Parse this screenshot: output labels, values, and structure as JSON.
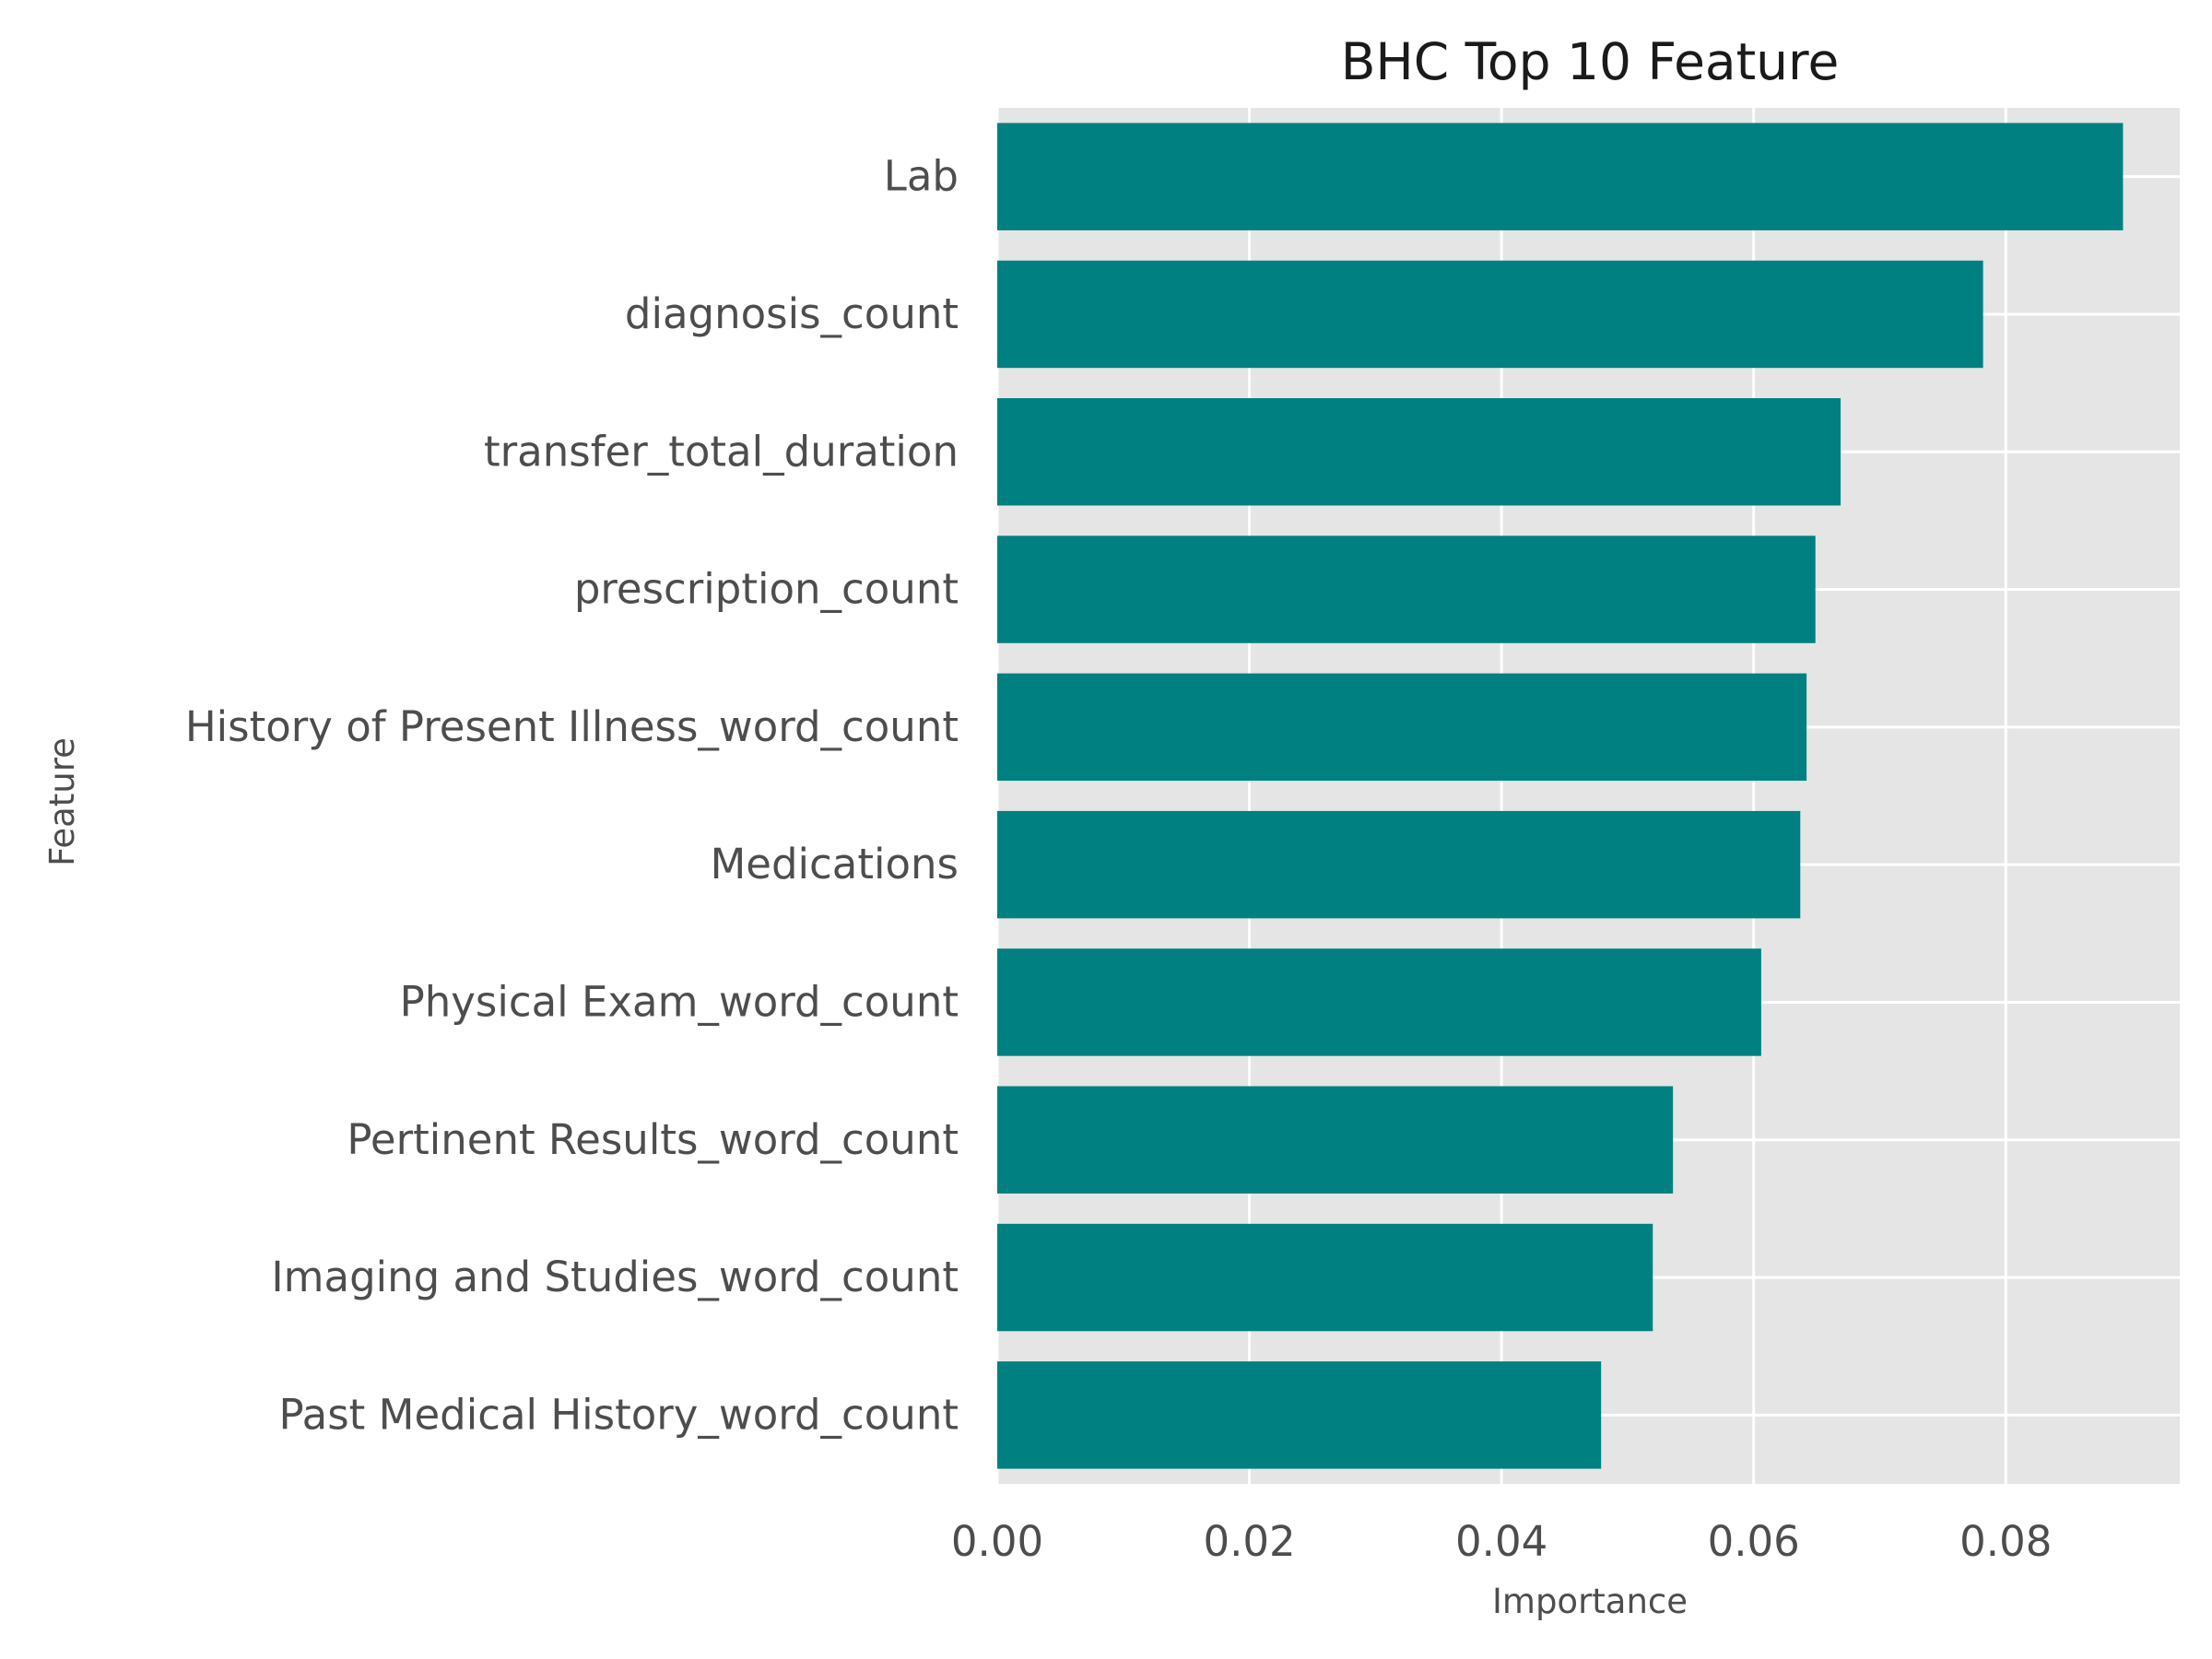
{
  "chart_data": {
    "type": "bar",
    "orientation": "horizontal",
    "title": "BHC Top 10 Feature",
    "xlabel": "Importance",
    "ylabel": "Feature",
    "categories": [
      "Lab",
      "diagnosis_count",
      "transfer_total_duration",
      "prescription_count",
      "History of Present Illness_word_count",
      "Medications",
      "Physical Exam_word_count",
      "Pertinent Results_word_count",
      "Imaging and Studies_word_count",
      "Past Medical History_word_count"
    ],
    "values": [
      0.0893,
      0.0782,
      0.0669,
      0.0649,
      0.0642,
      0.0637,
      0.0606,
      0.0536,
      0.052,
      0.0479
    ],
    "xlim": [
      0,
      0.0938
    ],
    "xticks": [
      0.0,
      0.02,
      0.04,
      0.06,
      0.08
    ],
    "xtick_labels": [
      "0.00",
      "0.02",
      "0.04",
      "0.06",
      "0.08"
    ],
    "grid": true,
    "bar_color": "#008080",
    "background_color": "#e5e5e5"
  }
}
